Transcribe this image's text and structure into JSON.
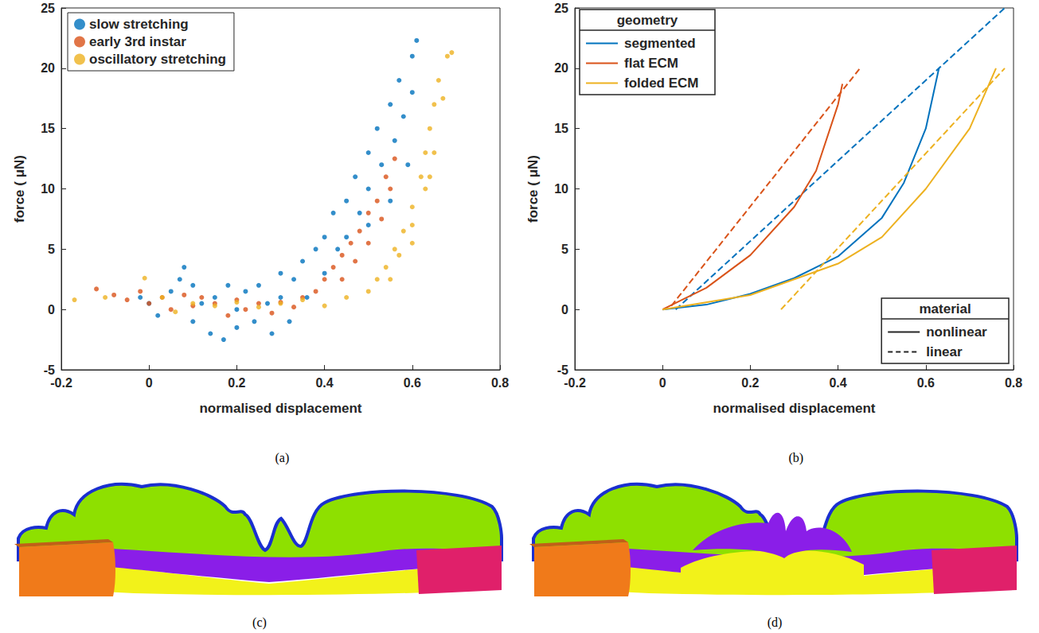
{
  "chart_data": [
    {
      "type": "scatter",
      "title": "(a)",
      "x_label": "normalised displacement",
      "y_label": "force ( μN)",
      "xlim": [
        -0.2,
        0.8
      ],
      "xticks": [
        -0.2,
        0,
        0.2,
        0.4,
        0.6,
        0.8
      ],
      "ylim": [
        -5,
        25
      ],
      "yticks": [
        -5,
        0,
        5,
        10,
        15,
        20,
        25
      ],
      "grid": false,
      "legend": "upper left",
      "marker": "circle",
      "series": [
        {
          "name": "slow stretching",
          "color": "#0072BD",
          "x": [
            -0.02,
            0,
            0.02,
            0.05,
            0.07,
            0.08,
            0.1,
            0.1,
            0.12,
            0.14,
            0.15,
            0.17,
            0.18,
            0.2,
            0.2,
            0.22,
            0.24,
            0.25,
            0.27,
            0.28,
            0.3,
            0.3,
            0.32,
            0.33,
            0.35,
            0.36,
            0.38,
            0.4,
            0.4,
            0.42,
            0.43,
            0.45,
            0.45,
            0.47,
            0.48,
            0.5,
            0.5,
            0.52,
            0.53,
            0.55,
            0.56,
            0.57,
            0.58,
            0.6,
            0.6,
            0.61,
            0.59,
            0.55,
            0.5
          ],
          "values": [
            1,
            0.5,
            -0.5,
            1.5,
            2.5,
            3.5,
            2,
            -1,
            0.5,
            -2,
            1,
            -2.5,
            2,
            0,
            -1.5,
            1.5,
            -1,
            2,
            0.5,
            -2,
            1,
            3,
            -1,
            2.5,
            4,
            1,
            5,
            6,
            3,
            8,
            5,
            9,
            6,
            11,
            8,
            13,
            10,
            15,
            12,
            17,
            14,
            19,
            16,
            21,
            18,
            22.3,
            12,
            9,
            7
          ]
        },
        {
          "name": "early 3rd instar",
          "color": "#D95319",
          "x": [
            -0.12,
            -0.08,
            -0.05,
            -0.02,
            0,
            0.03,
            0.05,
            0.08,
            0.1,
            0.12,
            0.15,
            0.18,
            0.2,
            0.22,
            0.25,
            0.28,
            0.3,
            0.33,
            0.35,
            0.38,
            0.4,
            0.42,
            0.44,
            0.46,
            0.48,
            0.5,
            0.52,
            0.54,
            0.56,
            0.55,
            0.53,
            0.5,
            0.47,
            0.44
          ],
          "values": [
            1.7,
            1.2,
            0.8,
            1.5,
            0.5,
            1,
            0,
            1.2,
            0.3,
            1,
            0.5,
            -0.5,
            0.8,
            0,
            0.5,
            -0.3,
            0.6,
            0.2,
            1,
            1.5,
            2.5,
            3.5,
            4.5,
            5.5,
            6.5,
            8,
            9,
            11,
            12.5,
            10,
            7.5,
            5.5,
            4,
            2.5
          ]
        },
        {
          "name": "oscillatory stretching",
          "color": "#EDB120",
          "x": [
            -0.17,
            -0.1,
            -0.01,
            0.03,
            0.06,
            0.1,
            0.15,
            0.2,
            0.25,
            0.3,
            0.35,
            0.4,
            0.45,
            0.5,
            0.52,
            0.54,
            0.56,
            0.58,
            0.6,
            0.62,
            0.63,
            0.64,
            0.65,
            0.66,
            0.68,
            0.69,
            0.67,
            0.65,
            0.63,
            0.6,
            0.57,
            0.55,
            0.6,
            0.64
          ],
          "values": [
            0.8,
            1,
            2.6,
            1,
            -0.2,
            0.5,
            0.3,
            0.6,
            0.2,
            0.5,
            0.8,
            0.3,
            1,
            1.5,
            2.5,
            3.5,
            5,
            6.5,
            8.5,
            11,
            13,
            15,
            17,
            19,
            21,
            21.3,
            17.5,
            13,
            10,
            7,
            4.5,
            2.5,
            5.5,
            11
          ]
        }
      ]
    },
    {
      "type": "line",
      "title": "(b)",
      "x_label": "normalised displacement",
      "y_label": "force ( μN)",
      "xlim": [
        -0.2,
        0.8
      ],
      "xticks": [
        -0.2,
        0,
        0.2,
        0.4,
        0.6,
        0.8
      ],
      "ylim": [
        -5,
        25
      ],
      "yticks": [
        -5,
        0,
        5,
        10,
        15,
        20,
        25
      ],
      "grid": false,
      "legend_boxes": [
        {
          "title": "geometry",
          "legend": "upper left",
          "entries": [
            {
              "name": "segmented",
              "color": "#0072BD"
            },
            {
              "name": "flat ECM",
              "color": "#D95319"
            },
            {
              "name": "folded ECM",
              "color": "#EDB120"
            }
          ]
        },
        {
          "title": "material",
          "legend": "lower right",
          "entries": [
            {
              "name": "nonlinear",
              "line_style": "solid"
            },
            {
              "name": "linear",
              "line_style": "dashed"
            }
          ]
        }
      ],
      "series": [
        {
          "geometry": "segmented",
          "material": "nonlinear",
          "color": "#0072BD",
          "line_style": "solid",
          "x": [
            0,
            0.1,
            0.2,
            0.3,
            0.4,
            0.5,
            0.55,
            0.6,
            0.63
          ],
          "values": [
            0,
            0.4,
            1.3,
            2.6,
            4.4,
            7.6,
            10.5,
            15,
            20
          ]
        },
        {
          "geometry": "segmented",
          "material": "linear",
          "color": "#0072BD",
          "line_style": "dashed",
          "x": [
            0.03,
            0.78
          ],
          "values": [
            0,
            25
          ]
        },
        {
          "geometry": "flat ECM",
          "material": "nonlinear",
          "color": "#D95319",
          "line_style": "solid",
          "x": [
            0,
            0.1,
            0.2,
            0.3,
            0.35,
            0.4,
            0.41
          ],
          "values": [
            0,
            1.8,
            4.5,
            8.5,
            11.5,
            17,
            18.7
          ]
        },
        {
          "geometry": "flat ECM",
          "material": "linear",
          "color": "#D95319",
          "line_style": "dashed",
          "x": [
            0.02,
            0.45
          ],
          "values": [
            0.3,
            20
          ]
        },
        {
          "geometry": "folded ECM",
          "material": "nonlinear",
          "color": "#EDB120",
          "line_style": "solid",
          "x": [
            0,
            0.2,
            0.4,
            0.5,
            0.6,
            0.7,
            0.76
          ],
          "values": [
            0,
            1.2,
            3.8,
            6,
            10,
            15,
            20
          ]
        },
        {
          "geometry": "folded ECM",
          "material": "linear",
          "color": "#EDB120",
          "line_style": "dashed",
          "x": [
            0.27,
            0.78
          ],
          "values": [
            0,
            20
          ]
        }
      ]
    }
  ],
  "images": [
    {
      "label": "(c)"
    },
    {
      "label": "(d)"
    }
  ]
}
